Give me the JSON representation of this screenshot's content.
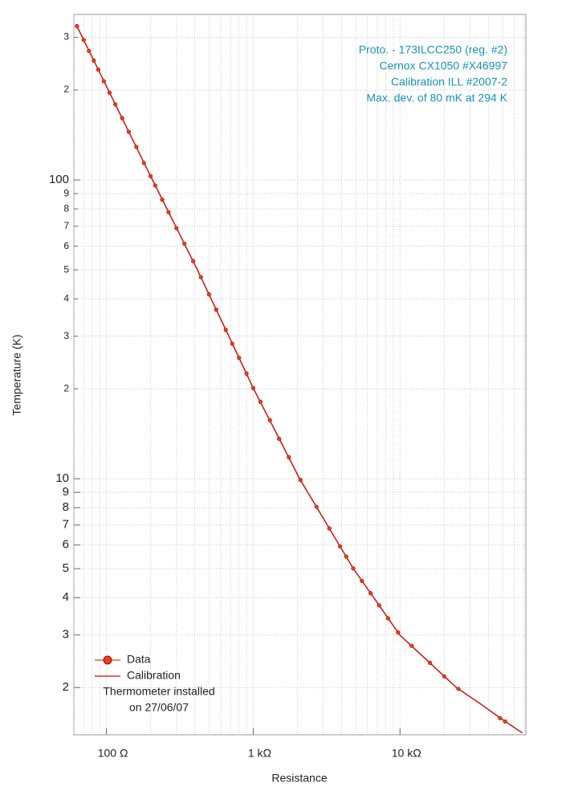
{
  "chart_data": {
    "type": "scatter",
    "xlabel": "Resistance",
    "ylabel": "Temperature (K)",
    "xscale": "log",
    "yscale": "log",
    "xlim": [
      60,
      72000
    ],
    "ylim": [
      1.39,
      358
    ],
    "xticks": [
      {
        "value": 100,
        "label": "100 Ω"
      },
      {
        "value": 1000,
        "label": "1 kΩ"
      },
      {
        "value": 10000,
        "label": "10 kΩ"
      }
    ],
    "xminor": [
      60,
      70,
      80,
      90,
      200,
      300,
      400,
      500,
      600,
      700,
      800,
      900,
      2000,
      3000,
      4000,
      5000,
      6000,
      7000,
      8000,
      9000,
      20000,
      30000,
      40000,
      50000,
      60000,
      70000
    ],
    "yticks": [
      {
        "value": 300,
        "label": "3"
      },
      {
        "value": 200,
        "label": "2"
      },
      100,
      {
        "value": 90,
        "label": "9"
      },
      {
        "value": 80,
        "label": "8"
      },
      {
        "value": 70,
        "label": "7"
      },
      {
        "value": 60,
        "label": "6"
      },
      {
        "value": 50,
        "label": "5"
      },
      {
        "value": 40,
        "label": "4"
      },
      {
        "value": 30,
        "label": "3"
      },
      {
        "value": 20,
        "label": "2"
      },
      10,
      9,
      8,
      7,
      6,
      5,
      4,
      3,
      2
    ],
    "grid": true,
    "annotation": [
      "Proto. - 173ILCC250 (reg. #2)",
      "Cernox CX1050 #X46997",
      "Calibration ILL #2007-2",
      "Max. dev. of 80 mK at 294 K"
    ],
    "annotation_color": "#1793b8",
    "legend_note": [
      "Thermometer installed",
      "on 27/06/07"
    ],
    "series": [
      {
        "name": "Data",
        "kind": "points",
        "color": "#e8401c",
        "x": [
          63,
          70,
          76,
          82,
          88,
          96,
          105,
          115,
          128,
          142,
          160,
          180,
          200,
          215,
          240,
          265,
          300,
          340,
          390,
          440,
          500,
          560,
          650,
          720,
          800,
          900,
          1000,
          1120,
          1300,
          1500,
          1750,
          2100,
          2700,
          3300,
          3900,
          4300,
          4800,
          5500,
          6300,
          7200,
          8300,
          9700,
          12000,
          16000,
          20000,
          25000,
          48000,
          52000
        ],
        "values": [
          327,
          294,
          270,
          251,
          234,
          214,
          196,
          179,
          161,
          145,
          129,
          114,
          103,
          95.8,
          85.9,
          78.0,
          69.0,
          61.2,
          53.5,
          47.3,
          41.4,
          36.8,
          31.5,
          28.3,
          25.4,
          22.5,
          20.1,
          18.1,
          15.7,
          13.6,
          11.8,
          9.91,
          8.05,
          6.82,
          5.94,
          5.49,
          5.01,
          4.55,
          4.14,
          3.77,
          3.41,
          3.06,
          2.76,
          2.42,
          2.18,
          1.98,
          1.58,
          1.54
        ]
      },
      {
        "name": "Calibration",
        "kind": "line",
        "color": "#d01010",
        "x": [
          62,
          100,
          140,
          200,
          411,
          700,
          1000,
          1450,
          2070,
          3300,
          4810,
          7000,
          9950,
          15000,
          24200,
          35000,
          46600,
          68000
        ],
        "values": [
          332,
          206,
          147,
          103,
          50.7,
          29.2,
          20.1,
          14.1,
          10.0,
          6.82,
          5.0,
          3.85,
          3.0,
          2.49,
          2.0,
          1.77,
          1.6,
          1.41
        ]
      }
    ]
  }
}
